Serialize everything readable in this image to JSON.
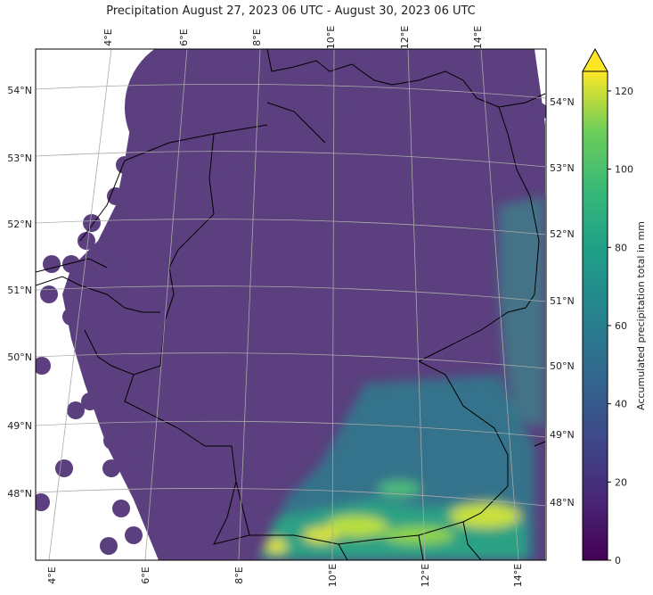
{
  "chart_data": {
    "type": "heatmap",
    "title": "Precipitation August 27, 2023 06 UTC - August 30, 2023 06 UTC",
    "colorbar": {
      "label": "Accumulated precipitation total in mm",
      "ticks": [
        0,
        20,
        40,
        60,
        80,
        100,
        120
      ],
      "range": [
        0,
        125
      ],
      "extend": "max",
      "colormap": "viridis"
    },
    "lon_ticks_top": [
      "4°E",
      "6°E",
      "8°E",
      "10°E",
      "12°E",
      "14°E"
    ],
    "lon_ticks_bottom": [
      "4°E",
      "6°E",
      "8°E",
      "10°E",
      "12°E",
      "14°E"
    ],
    "lat_ticks_left": [
      "54°N",
      "53°N",
      "52°N",
      "51°N",
      "50°N",
      "49°N",
      "48°N"
    ],
    "lat_ticks_right": [
      "54°N",
      "53°N",
      "52°N",
      "51°N",
      "50°N",
      "49°N",
      "48°N"
    ],
    "grid": true,
    "region": "Germany and surrounding radar coverage",
    "description_of_values": {
      "background_level_mm": 3,
      "southern_alpine_max_mm": 120,
      "eastern_border_mm": 30
    }
  },
  "colors": {
    "low": "#5b3f7e",
    "mid": "#3a8a8c",
    "high": "#f0e63a"
  }
}
